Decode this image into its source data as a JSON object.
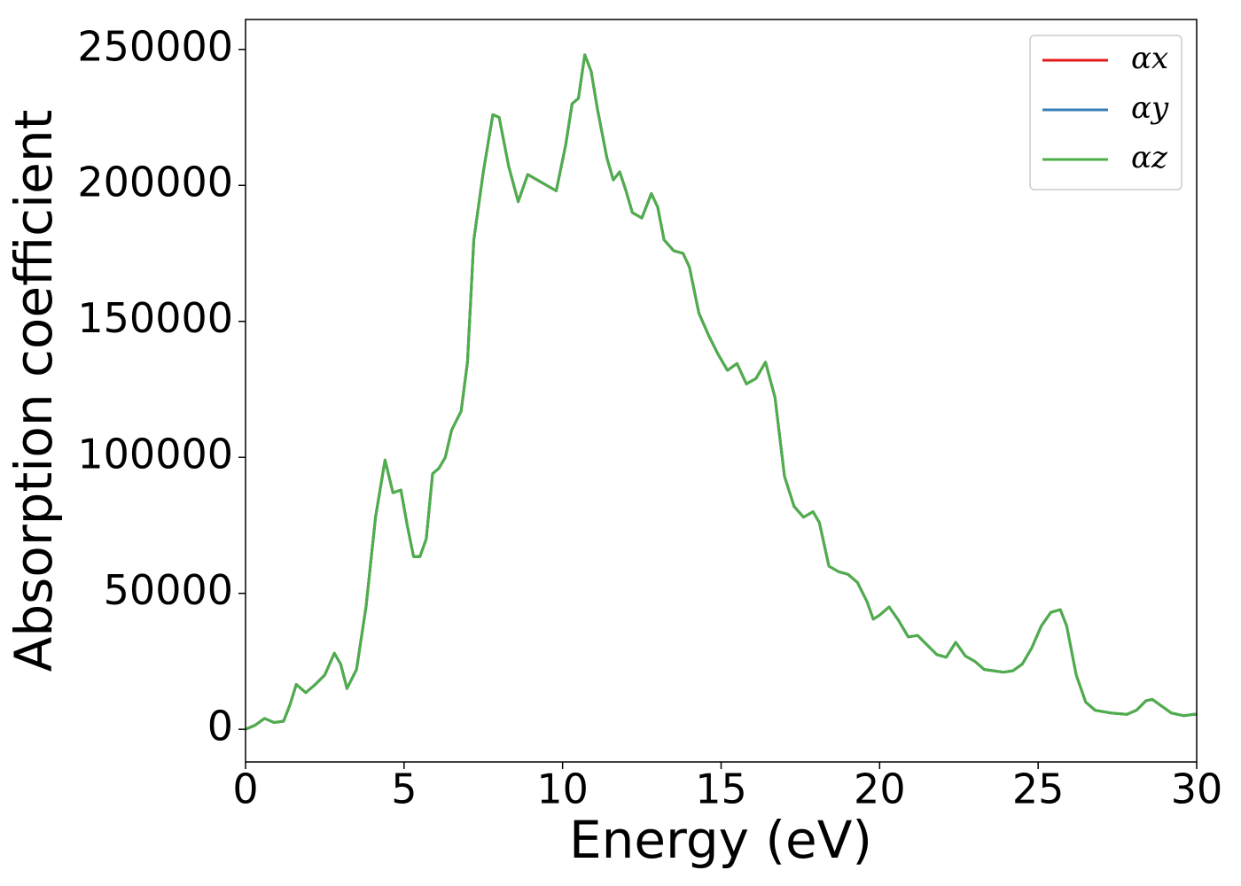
{
  "chart_data": {
    "type": "line",
    "xlabel": "Energy (eV)",
    "ylabel": "Absorption coefficient",
    "x": [
      0,
      0.3,
      0.6,
      0.9,
      1.2,
      1.4,
      1.6,
      1.9,
      2.2,
      2.5,
      2.8,
      3.0,
      3.2,
      3.5,
      3.8,
      4.1,
      4.4,
      4.65,
      4.9,
      5.1,
      5.3,
      5.5,
      5.7,
      5.9,
      6.1,
      6.3,
      6.5,
      6.8,
      7.0,
      7.2,
      7.5,
      7.8,
      8.0,
      8.3,
      8.6,
      8.9,
      9.2,
      9.5,
      9.8,
      10.1,
      10.3,
      10.5,
      10.7,
      10.9,
      11.1,
      11.4,
      11.6,
      11.8,
      12.0,
      12.2,
      12.5,
      12.8,
      13.0,
      13.2,
      13.5,
      13.8,
      14.0,
      14.3,
      14.6,
      14.9,
      15.2,
      15.5,
      15.8,
      16.1,
      16.4,
      16.7,
      17.0,
      17.3,
      17.6,
      17.9,
      18.1,
      18.4,
      18.7,
      19.0,
      19.3,
      19.6,
      19.8,
      20.0,
      20.3,
      20.6,
      20.9,
      21.2,
      21.5,
      21.8,
      22.1,
      22.4,
      22.7,
      23.0,
      23.3,
      23.6,
      23.9,
      24.2,
      24.5,
      24.8,
      25.1,
      25.4,
      25.7,
      25.9,
      26.2,
      26.5,
      26.8,
      27.3,
      27.8,
      28.1,
      28.4,
      28.6,
      28.9,
      29.2,
      29.6,
      29.9,
      30
    ],
    "series": [
      {
        "name": "αx",
        "color": "#e41a1c",
        "values": [
          0,
          1500,
          4000,
          2500,
          3000,
          9000,
          16500,
          13500,
          16500,
          20000,
          28000,
          24000,
          15000,
          22000,
          45000,
          78000,
          99000,
          87000,
          88000,
          75000,
          63500,
          63500,
          70000,
          94000,
          96000,
          100000,
          110000,
          117000,
          135000,
          180000,
          205000,
          226000,
          225000,
          207000,
          194000,
          204000,
          202000,
          200000,
          198000,
          215000,
          230000,
          232000,
          248000,
          242000,
          228000,
          210000,
          202000,
          205000,
          198000,
          190000,
          188000,
          197000,
          192000,
          180000,
          176000,
          175000,
          170000,
          153000,
          145000,
          138000,
          132000,
          134500,
          127000,
          129000,
          135000,
          122000,
          93000,
          82000,
          78000,
          80000,
          76000,
          60000,
          58000,
          57000,
          54000,
          47000,
          40500,
          42000,
          45000,
          40000,
          34000,
          34500,
          31000,
          27500,
          26500,
          32000,
          27000,
          25000,
          22000,
          21500,
          21000,
          21500,
          24000,
          30000,
          38000,
          43000,
          44000,
          38000,
          20000,
          10000,
          7000,
          6000,
          5500,
          7000,
          10500,
          11000,
          8500,
          6000,
          5000,
          5500,
          5500
        ]
      },
      {
        "name": "αy",
        "color": "#377eb8",
        "values": [
          0,
          1500,
          4000,
          2500,
          3000,
          9000,
          16500,
          13500,
          16500,
          20000,
          28000,
          24000,
          15000,
          22000,
          45000,
          78000,
          99000,
          87000,
          88000,
          75000,
          63500,
          63500,
          70000,
          94000,
          96000,
          100000,
          110000,
          117000,
          135000,
          180000,
          205000,
          226000,
          225000,
          207000,
          194000,
          204000,
          202000,
          200000,
          198000,
          215000,
          230000,
          232000,
          248000,
          242000,
          228000,
          210000,
          202000,
          205000,
          198000,
          190000,
          188000,
          197000,
          192000,
          180000,
          176000,
          175000,
          170000,
          153000,
          145000,
          138000,
          132000,
          134500,
          127000,
          129000,
          135000,
          122000,
          93000,
          82000,
          78000,
          80000,
          76000,
          60000,
          58000,
          57000,
          54000,
          47000,
          40500,
          42000,
          45000,
          40000,
          34000,
          34500,
          31000,
          27500,
          26500,
          32000,
          27000,
          25000,
          22000,
          21500,
          21000,
          21500,
          24000,
          30000,
          38000,
          43000,
          44000,
          38000,
          20000,
          10000,
          7000,
          6000,
          5500,
          7000,
          10500,
          11000,
          8500,
          6000,
          5000,
          5500,
          5500
        ]
      },
      {
        "name": "αz",
        "color": "#4daf4a",
        "values": [
          0,
          1500,
          4000,
          2500,
          3000,
          9000,
          16500,
          13500,
          16500,
          20000,
          28000,
          24000,
          15000,
          22000,
          45000,
          78000,
          99000,
          87000,
          88000,
          75000,
          63500,
          63500,
          70000,
          94000,
          96000,
          100000,
          110000,
          117000,
          135000,
          180000,
          205000,
          226000,
          225000,
          207000,
          194000,
          204000,
          202000,
          200000,
          198000,
          215000,
          230000,
          232000,
          248000,
          242000,
          228000,
          210000,
          202000,
          205000,
          198000,
          190000,
          188000,
          197000,
          192000,
          180000,
          176000,
          175000,
          170000,
          153000,
          145000,
          138000,
          132000,
          134500,
          127000,
          129000,
          135000,
          122000,
          93000,
          82000,
          78000,
          80000,
          76000,
          60000,
          58000,
          57000,
          54000,
          47000,
          40500,
          42000,
          45000,
          40000,
          34000,
          34500,
          31000,
          27500,
          26500,
          32000,
          27000,
          25000,
          22000,
          21500,
          21000,
          21500,
          24000,
          30000,
          38000,
          43000,
          44000,
          38000,
          20000,
          10000,
          7000,
          6000,
          5500,
          7000,
          10500,
          11000,
          8500,
          6000,
          5000,
          5500,
          5500
        ]
      }
    ],
    "xlim": [
      0,
      30
    ],
    "xticks": [
      0,
      5,
      10,
      15,
      20,
      25,
      30
    ],
    "ylim": [
      -12000,
      261000
    ],
    "yticks": [
      0,
      50000,
      100000,
      150000,
      200000,
      250000
    ],
    "grid": false,
    "legend": "upper right"
  }
}
